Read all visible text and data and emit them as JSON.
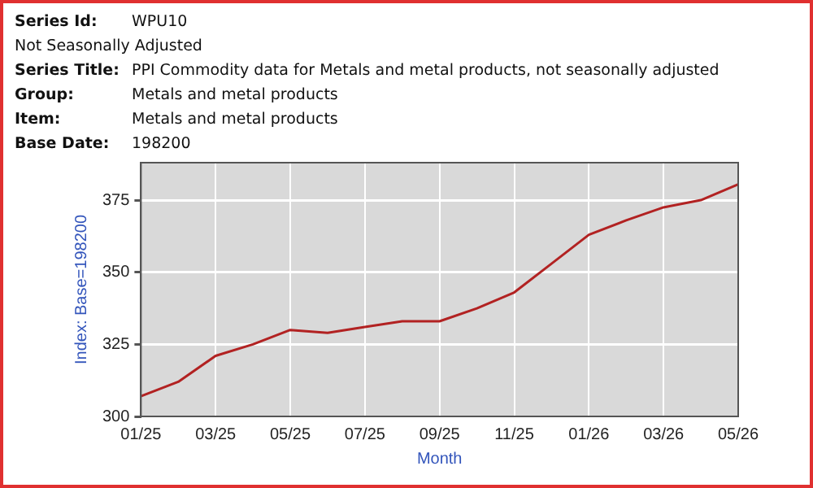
{
  "chart_data": {
    "type": "line",
    "annotations": [
      "Series Id: WPU10",
      "Not Seasonally Adjusted",
      "Series Title: PPI Commodity data for Metals and metal products, not seasonally adjusted",
      "Group: Metals and metal products",
      "Item: Metals and metal products",
      "Base Date: 198200"
    ],
    "xlabel": "Month",
    "ylabel": "Index: Base=198200",
    "categories": [
      "01/25",
      null,
      "03/25",
      null,
      "05/25",
      null,
      "07/25",
      null,
      "09/25",
      null,
      "11/25",
      null,
      "01/26",
      null,
      "03/26",
      null,
      "05/26"
    ],
    "series": [
      {
        "color": "#b22222",
        "values": [
          307,
          312,
          321,
          325,
          330,
          329,
          331,
          333,
          333,
          337.5,
          343,
          353,
          363,
          368,
          372.5,
          375,
          380.5
        ]
      }
    ],
    "ylim": [
      300,
      388
    ],
    "yticks": [
      300,
      325,
      350,
      375
    ],
    "grid": true,
    "legend": false,
    "marker": "none",
    "line_style": "solid"
  }
}
